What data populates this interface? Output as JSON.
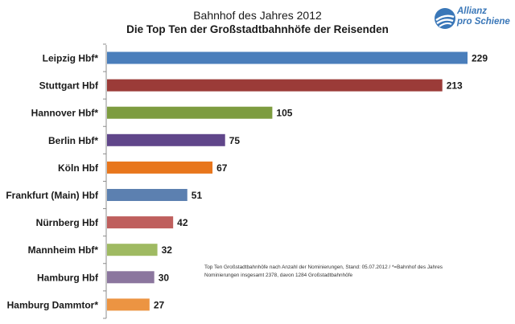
{
  "header": {
    "title": "Bahnhof des Jahres 2012",
    "subtitle": "Die Top Ten der Großstadtbahnhöfe der Reisenden"
  },
  "logo": {
    "line1": "Allianz",
    "line2": "pro Schiene",
    "color": "#3a77b8"
  },
  "footnote": {
    "line1": "Top Ten Großstadtbahnhöfe nach Anzahl der Nominierungen, Stand: 05.07.2012 / *=Bahnhof des Jahres",
    "line2": "Nominierungen insgesamt 2378, davon 1284 Großstadtbahnhöfe"
  },
  "chart_data": {
    "type": "bar",
    "orientation": "horizontal",
    "title": "Bahnhof des Jahres 2012",
    "subtitle": "Die Top Ten der Großstadtbahnhöfe der Reisenden",
    "categories": [
      "Leipzig Hbf*",
      "Stuttgart Hbf",
      "Hannover Hbf*",
      "Berlin Hbf*",
      "Köln Hbf",
      "Frankfurt (Main) Hbf",
      "Nürnberg Hbf",
      "Mannheim Hbf*",
      "Hamburg Hbf",
      "Hamburg Dammtor*"
    ],
    "values": [
      229,
      213,
      105,
      75,
      67,
      51,
      42,
      32,
      30,
      27
    ],
    "colors": [
      "#4a7ebb",
      "#9b3b38",
      "#7d9c3f",
      "#60468a",
      "#e8761c",
      "#5c80b0",
      "#bf5f5d",
      "#9fba62",
      "#8b769e",
      "#ec9442"
    ],
    "xlim": [
      0,
      229
    ],
    "grid": false,
    "legend": false
  }
}
